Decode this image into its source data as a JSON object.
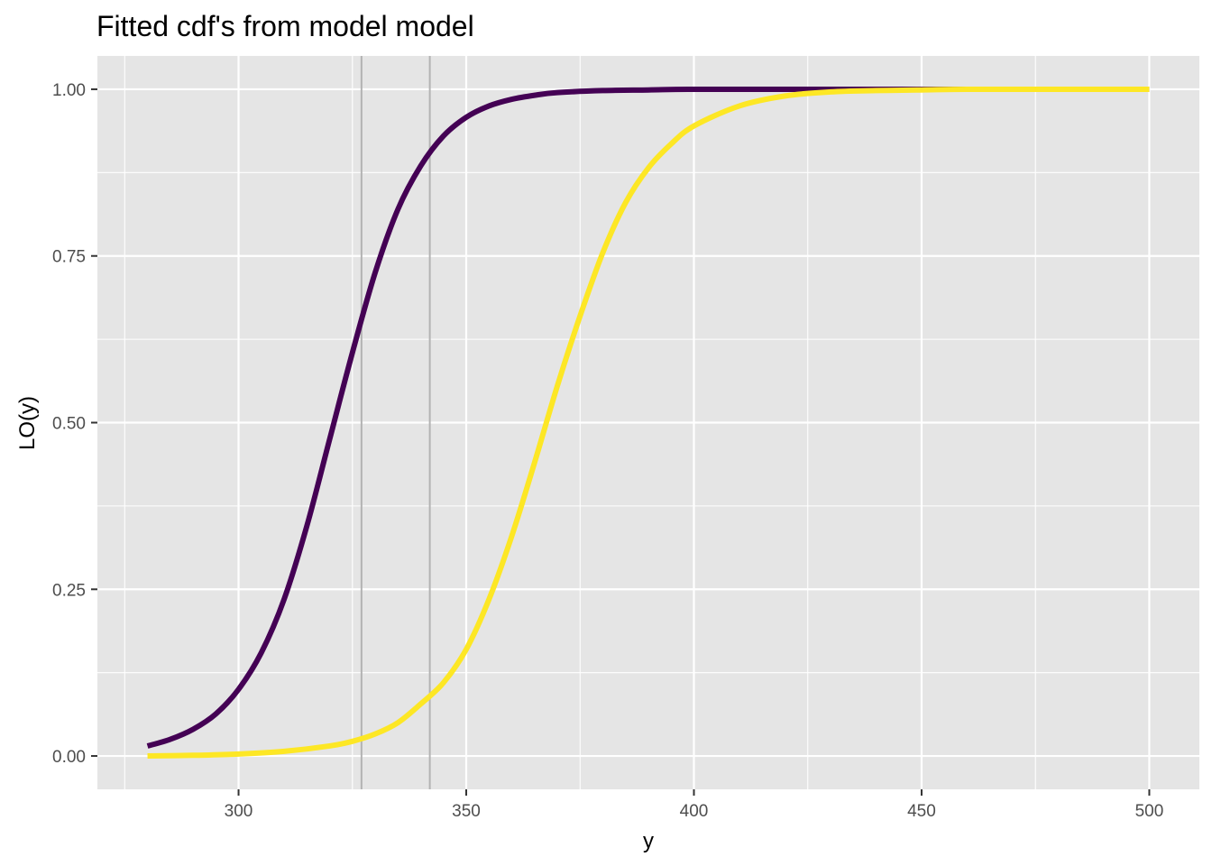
{
  "chart_data": {
    "type": "line",
    "title": "Fitted cdf's from model model",
    "xlabel": "y",
    "ylabel": "LO(y)",
    "xlim": [
      269,
      511
    ],
    "ylim": [
      -0.05,
      1.05
    ],
    "x_ticks": [
      300,
      350,
      400,
      450,
      500
    ],
    "x_tick_labels": [
      "300",
      "350",
      "400",
      "450",
      "500"
    ],
    "y_ticks": [
      0,
      0.25,
      0.5,
      0.75,
      1
    ],
    "y_tick_labels": [
      "0.00",
      "0.25",
      "0.50",
      "0.75",
      "1.00"
    ],
    "grid": true,
    "legend": "none",
    "vlines": [
      327,
      342
    ],
    "colors": {
      "panel_background": "#e5e5e5",
      "grid": "#ffffff",
      "vline": "#b3b3b3",
      "tick": "#333333"
    },
    "series": [
      {
        "color": "#440154",
        "x": [
          280,
          285,
          290,
          295,
          300,
          305,
          310,
          315,
          320,
          325,
          330,
          335,
          340,
          345,
          350,
          355,
          360,
          365,
          370,
          380,
          390,
          400,
          420,
          450,
          500
        ],
        "y": [
          0.015,
          0.025,
          0.04,
          0.063,
          0.1,
          0.155,
          0.235,
          0.345,
          0.475,
          0.605,
          0.725,
          0.82,
          0.885,
          0.93,
          0.958,
          0.975,
          0.985,
          0.991,
          0.995,
          0.998,
          0.999,
          1.0,
          1.0,
          1.0,
          1.0
        ]
      },
      {
        "color": "#fde725",
        "x": [
          280,
          290,
          300,
          310,
          320,
          325,
          330,
          335,
          340,
          345,
          350,
          355,
          360,
          365,
          370,
          375,
          380,
          385,
          390,
          395,
          400,
          410,
          420,
          430,
          440,
          450,
          460,
          475,
          500
        ],
        "y": [
          0.0,
          0.001,
          0.003,
          0.007,
          0.015,
          0.022,
          0.033,
          0.05,
          0.078,
          0.11,
          0.16,
          0.235,
          0.33,
          0.44,
          0.555,
          0.66,
          0.755,
          0.83,
          0.882,
          0.918,
          0.945,
          0.975,
          0.99,
          0.996,
          0.998,
          0.999,
          1.0,
          1.0,
          1.0
        ]
      }
    ]
  }
}
